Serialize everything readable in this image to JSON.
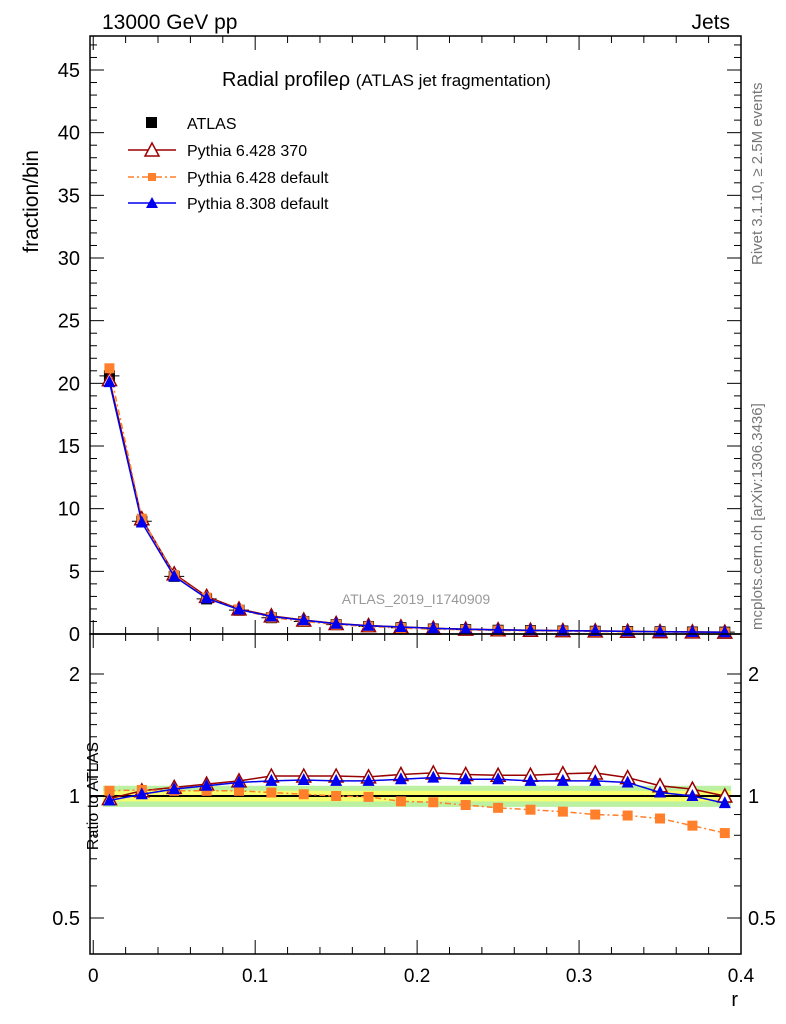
{
  "header": {
    "left": "13000 GeV pp",
    "right": "Jets"
  },
  "side_labels": {
    "top": "Rivet 3.1.10, ≥ 2.5M events",
    "bottom": "mcplots.cern.ch [arXiv:1306.3436]"
  },
  "watermark": "ATLAS_2019_I1740909",
  "chart_data": [
    {
      "type": "line",
      "panel": "main",
      "title": "Radial profile",
      "title_symbol": "ρ",
      "subtitle": "(ATLAS jet fragmentation)",
      "xlabel": "r",
      "ylabel": "fraction/bin",
      "xlim": [
        -0.002,
        0.4
      ],
      "ylim": [
        0,
        48
      ],
      "yticks": [
        "0",
        "5",
        "10",
        "15",
        "20",
        "25",
        "30",
        "35",
        "40",
        "45"
      ],
      "x": [
        0.01,
        0.03,
        0.05,
        0.07,
        0.09,
        0.11,
        0.13,
        0.15,
        0.17,
        0.19,
        0.21,
        0.23,
        0.25,
        0.27,
        0.29,
        0.31,
        0.33,
        0.35,
        0.37,
        0.39
      ],
      "series": [
        {
          "name": "ATLAS",
          "color": "#000000",
          "marker": "square",
          "values": [
            20.6,
            9.0,
            4.6,
            2.8,
            1.9,
            1.3,
            1.0,
            0.75,
            0.6,
            0.5,
            0.4,
            0.35,
            0.3,
            0.27,
            0.24,
            0.22,
            0.2,
            0.18,
            0.16,
            0.15
          ]
        },
        {
          "name": "Pythia 6.428 370",
          "color": "#990000",
          "marker": "open-triangle",
          "values": [
            20.3,
            9.2,
            4.8,
            3.0,
            2.0,
            1.45,
            1.12,
            0.84,
            0.67,
            0.57,
            0.46,
            0.39,
            0.34,
            0.3,
            0.27,
            0.25,
            0.22,
            0.19,
            0.17,
            0.15
          ]
        },
        {
          "name": "Pythia 6.428 default",
          "color": "#ff7f2a",
          "marker": "square",
          "values": [
            21.2,
            9.2,
            4.7,
            2.9,
            1.95,
            1.32,
            1.01,
            0.75,
            0.6,
            0.48,
            0.38,
            0.33,
            0.28,
            0.25,
            0.22,
            0.2,
            0.18,
            0.16,
            0.14,
            0.12
          ]
        },
        {
          "name": "Pythia 8.308 default",
          "color": "#0000ee",
          "marker": "triangle",
          "values": [
            20.1,
            8.9,
            4.6,
            2.85,
            1.95,
            1.4,
            1.1,
            0.82,
            0.66,
            0.56,
            0.45,
            0.38,
            0.33,
            0.29,
            0.26,
            0.24,
            0.21,
            0.18,
            0.16,
            0.14
          ]
        }
      ]
    },
    {
      "type": "line",
      "panel": "ratio",
      "ylabel": "Ratio to ATLAS",
      "xlabel": "r",
      "ylim": [
        0.4,
        2.3
      ],
      "yscale": "log",
      "yticks": [
        "0.5",
        "1",
        "2"
      ],
      "xticks": [
        "0",
        "0.1",
        "0.2",
        "0.3",
        "0.4"
      ],
      "x": [
        0.01,
        0.03,
        0.05,
        0.07,
        0.09,
        0.11,
        0.13,
        0.15,
        0.17,
        0.19,
        0.21,
        0.23,
        0.25,
        0.27,
        0.29,
        0.31,
        0.33,
        0.35,
        0.37,
        0.39
      ],
      "band": {
        "inner": 0.03,
        "outer": 0.06,
        "inner_color": "#ffff66",
        "outer_color": "#aaee88"
      },
      "series": [
        {
          "name": "Pythia 6.428 370",
          "color": "#990000",
          "marker": "open-triangle",
          "values": [
            0.985,
            1.03,
            1.05,
            1.07,
            1.09,
            1.12,
            1.12,
            1.12,
            1.115,
            1.13,
            1.14,
            1.13,
            1.125,
            1.125,
            1.135,
            1.14,
            1.11,
            1.06,
            1.04,
            1.0
          ]
        },
        {
          "name": "Pythia 6.428 default",
          "color": "#ff7f2a",
          "marker": "square",
          "values": [
            1.03,
            1.035,
            1.03,
            1.03,
            1.03,
            1.02,
            1.01,
            1.0,
            0.995,
            0.97,
            0.965,
            0.95,
            0.935,
            0.925,
            0.915,
            0.9,
            0.895,
            0.88,
            0.845,
            0.81
          ]
        },
        {
          "name": "Pythia 8.308 default",
          "color": "#0000ee",
          "marker": "triangle",
          "values": [
            0.975,
            1.01,
            1.04,
            1.06,
            1.08,
            1.09,
            1.095,
            1.09,
            1.09,
            1.1,
            1.11,
            1.1,
            1.1,
            1.09,
            1.09,
            1.09,
            1.08,
            1.02,
            1.0,
            0.96
          ]
        }
      ]
    }
  ]
}
